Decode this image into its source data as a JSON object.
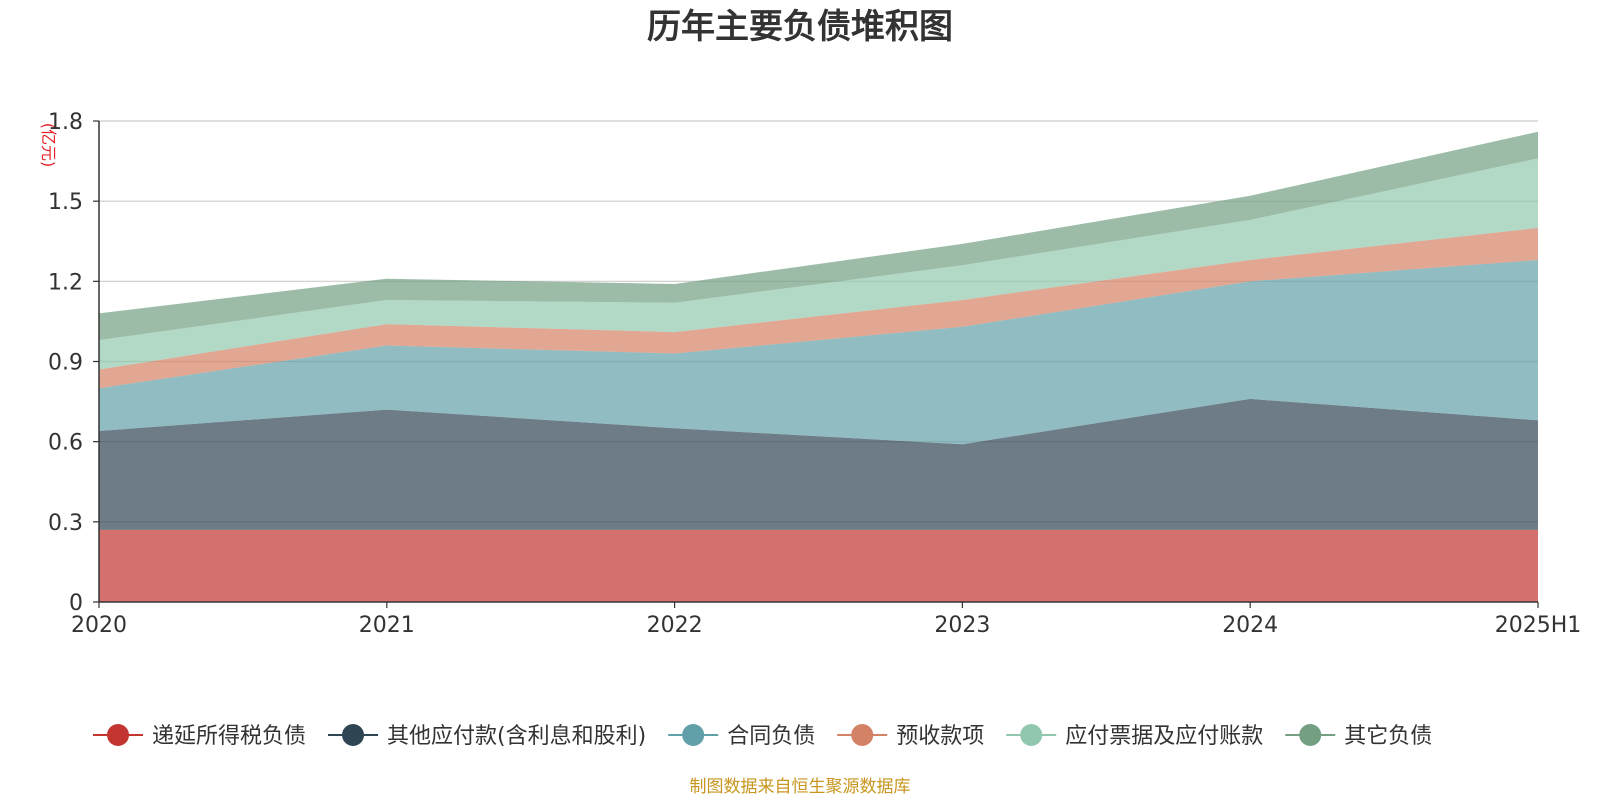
{
  "chart_data": {
    "type": "area",
    "stacked": true,
    "title": "历年主要负债堆积图",
    "unit_label": "(亿元)",
    "x": [
      "2020",
      "2021",
      "2022",
      "2023",
      "2024",
      "2025H1"
    ],
    "ylim": [
      0,
      1.8
    ],
    "yticks": [
      "0",
      "0.3",
      "0.6",
      "0.9",
      "1.2",
      "1.5",
      "1.8"
    ],
    "grid": true,
    "legend_position": "bottom",
    "series": [
      {
        "name": "递延所得税负债",
        "color": "#c23531",
        "values": [
          0.27,
          0.27,
          0.27,
          0.27,
          0.27,
          0.27
        ]
      },
      {
        "name": "其他应付款(含利息和股利)",
        "color": "#2f4554",
        "values": [
          0.37,
          0.45,
          0.38,
          0.32,
          0.49,
          0.41
        ]
      },
      {
        "name": "合同负债",
        "color": "#61a0a8",
        "values": [
          0.16,
          0.24,
          0.28,
          0.44,
          0.44,
          0.6
        ]
      },
      {
        "name": "预收款项",
        "color": "#d48265",
        "values": [
          0.07,
          0.08,
          0.08,
          0.1,
          0.08,
          0.12
        ]
      },
      {
        "name": "应付票据及应付账款",
        "color": "#91c7ae",
        "values": [
          0.11,
          0.09,
          0.11,
          0.13,
          0.15,
          0.26
        ]
      },
      {
        "name": "其它负债",
        "color": "#749f83",
        "values": [
          0.1,
          0.08,
          0.07,
          0.08,
          0.09,
          0.1
        ]
      }
    ]
  },
  "footer": {
    "source": "制图数据来自恒生聚源数据库"
  }
}
